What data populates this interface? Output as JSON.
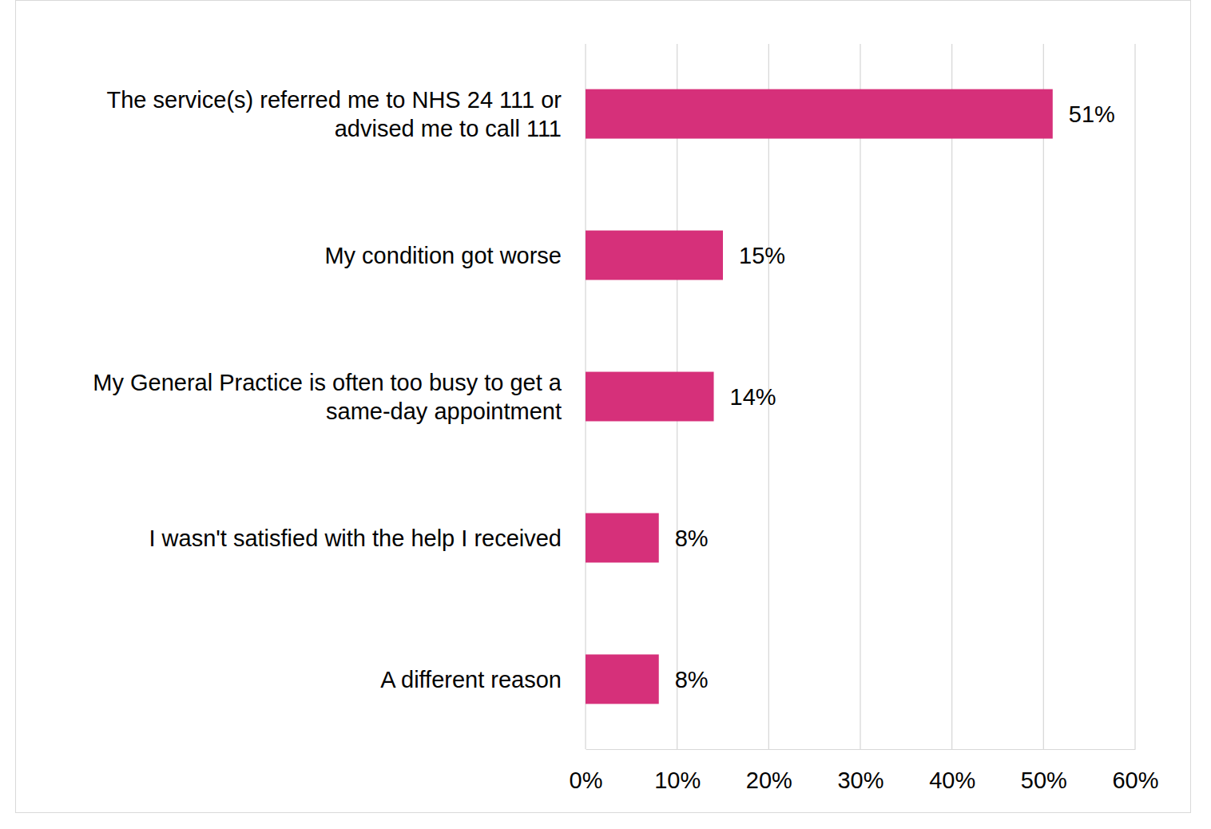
{
  "chart_data": {
    "type": "bar",
    "orientation": "horizontal",
    "categories": [
      "The service(s) referred me to NHS 24 111 or advised me to call 111",
      "My condition got worse",
      "My General Practice is often too busy to get a same-day appointment",
      "I wasn't satisfied with the help I received",
      "A different reason"
    ],
    "values": [
      51,
      15,
      14,
      8,
      8
    ],
    "value_labels": [
      "51%",
      "15%",
      "14%",
      "8%",
      "8%"
    ],
    "color": "#d6307a",
    "xlim": [
      0,
      60
    ],
    "xticks": [
      {
        "value": 0,
        "label": "0%"
      },
      {
        "value": 10,
        "label": "10%"
      },
      {
        "value": 20,
        "label": "20%"
      },
      {
        "value": 30,
        "label": "30%"
      },
      {
        "value": 40,
        "label": "40%"
      },
      {
        "value": 50,
        "label": "50%"
      },
      {
        "value": 60,
        "label": "60%"
      }
    ],
    "grid": true,
    "data_labels": true
  }
}
